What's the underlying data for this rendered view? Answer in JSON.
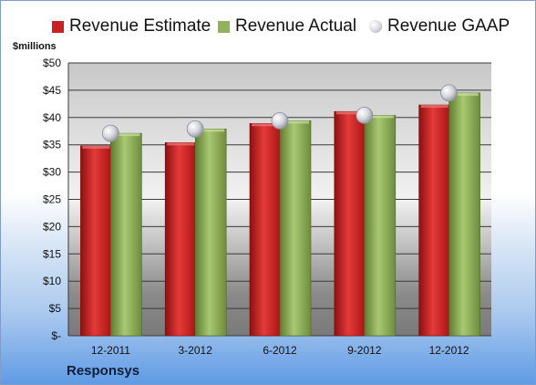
{
  "company": "Responsys",
  "colors": {
    "estimate": "#cc1f1f",
    "actual": "#8fb25a",
    "gaap": "#c9ccd2"
  },
  "chart_data": {
    "type": "bar",
    "unit_label": "$millions",
    "categories": [
      "12-2011",
      "3-2012",
      "6-2012",
      "9-2012",
      "12-2012"
    ],
    "series": [
      {
        "name": "Revenue Estimate",
        "type": "bar",
        "values": [
          34.8,
          35.4,
          38.9,
          41.1,
          42.3
        ]
      },
      {
        "name": "Revenue Actual",
        "type": "bar",
        "values": [
          37.1,
          37.9,
          39.4,
          40.4,
          44.5
        ]
      },
      {
        "name": "Revenue GAAP",
        "type": "scatter",
        "values": [
          37.1,
          37.9,
          39.4,
          40.4,
          44.5
        ]
      }
    ],
    "ylim": [
      0,
      50
    ],
    "yticks": [
      "$-",
      "$5",
      "$10",
      "$15",
      "$20",
      "$25",
      "$30",
      "$35",
      "$40",
      "$45",
      "$50"
    ],
    "grid": true,
    "legend_position": "top"
  }
}
